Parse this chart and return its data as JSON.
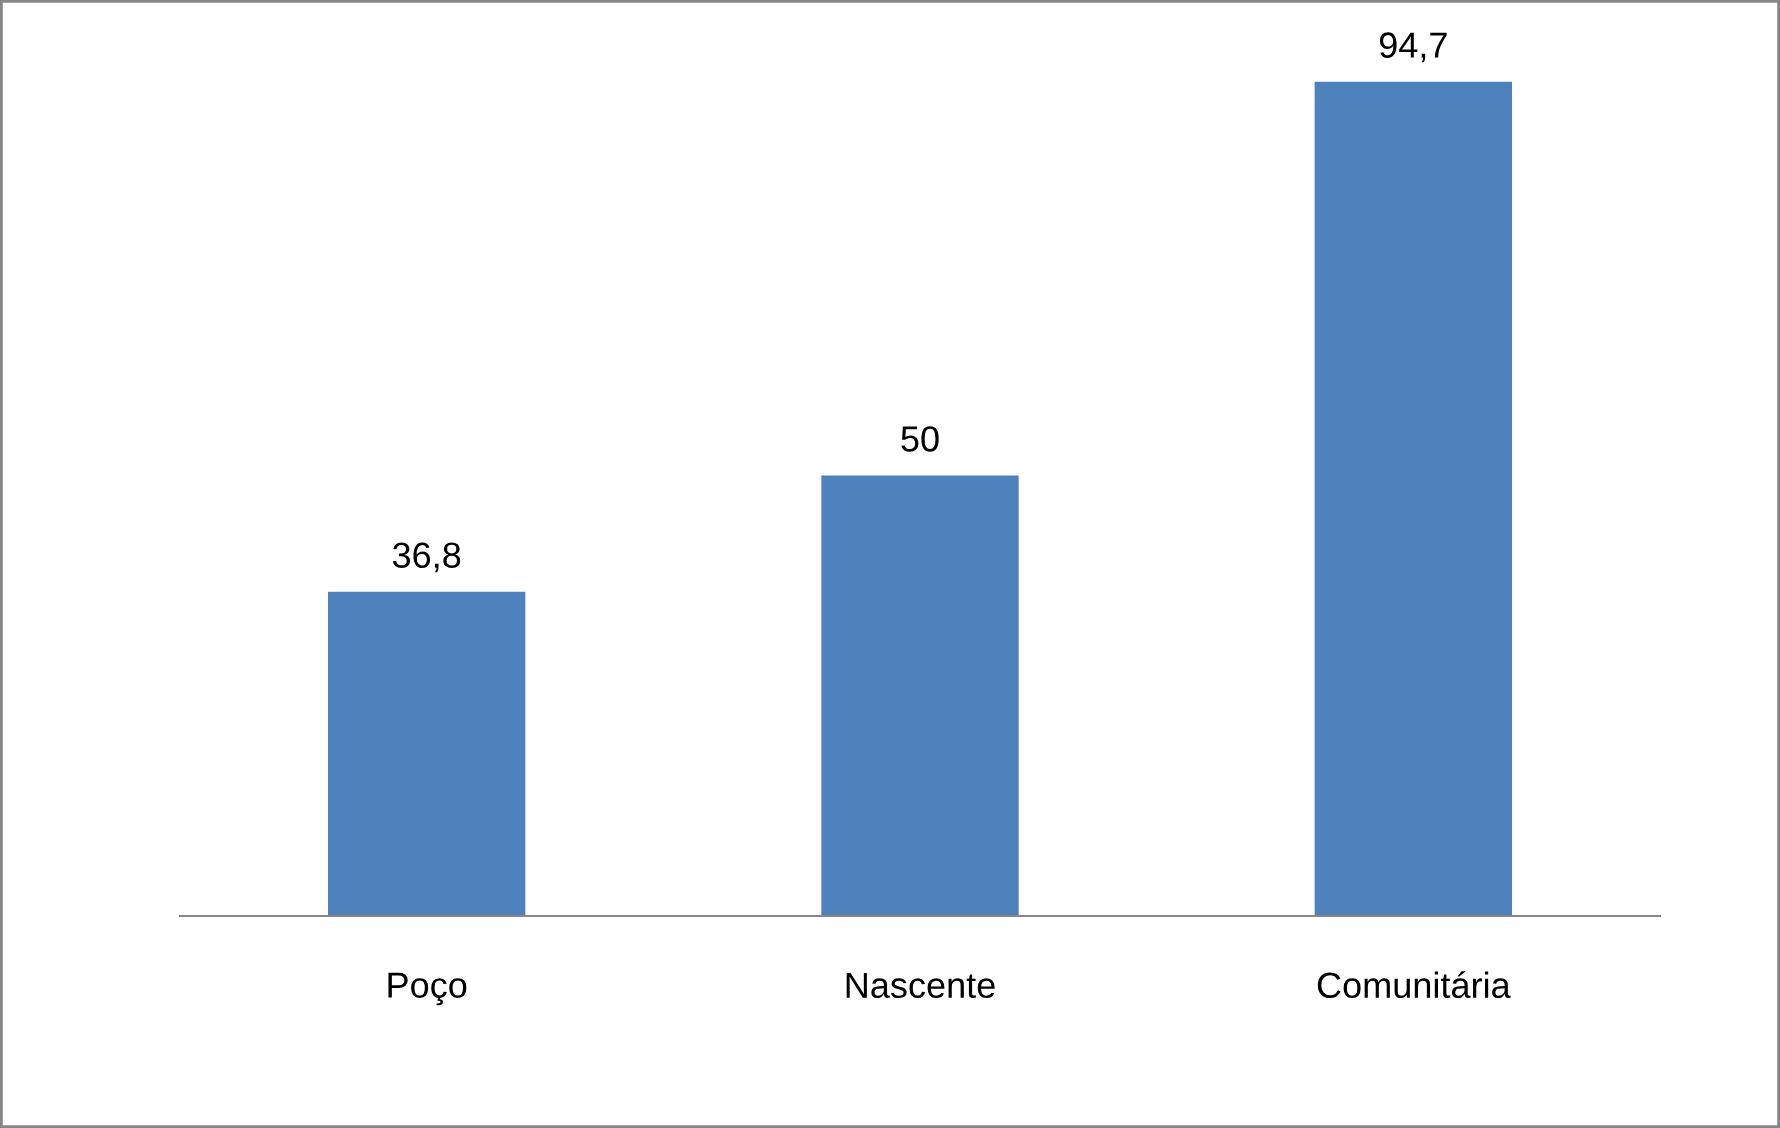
{
  "chart_data": {
    "type": "bar",
    "categories": [
      "Poço",
      "Nascente",
      "Comunitária"
    ],
    "values": [
      36.8,
      50,
      94.7
    ],
    "value_labels": [
      "36,8",
      "50",
      "94,7"
    ],
    "color": "#4f81bd",
    "tick_labels": "x"
  }
}
